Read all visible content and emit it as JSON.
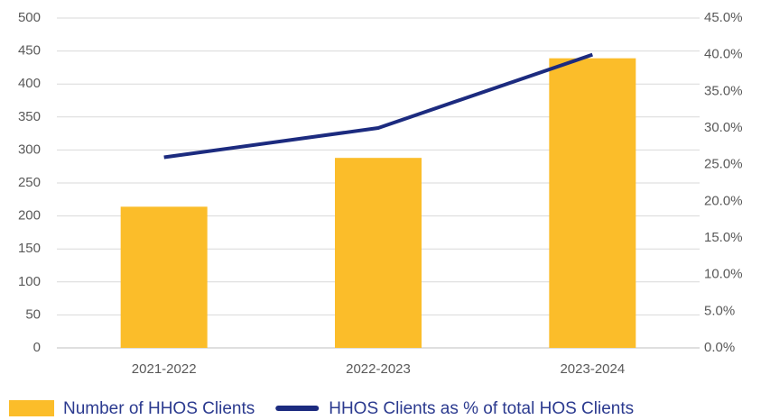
{
  "chart_data": {
    "type": "bar",
    "categories": [
      "2021-2022",
      "2022-2023",
      "2023-2024"
    ],
    "series": [
      {
        "name": "Number of HHOS Clients",
        "color": "#fbbd2a",
        "type": "bar",
        "values": [
          214,
          288,
          439
        ]
      },
      {
        "name": "HHOS Clients as % of total HOS Clients",
        "color": "#1c2b7f",
        "type": "line",
        "axis": "y2",
        "values": [
          26,
          30,
          40
        ]
      }
    ],
    "ylim": [
      0,
      500
    ],
    "yticks": [
      0,
      50,
      100,
      150,
      200,
      250,
      300,
      350,
      400,
      450,
      500
    ],
    "y2lim": [
      0,
      45
    ],
    "y2ticks": [
      {
        "value": 0,
        "label": "0.0%"
      },
      {
        "value": 5,
        "label": "5.0%"
      },
      {
        "value": 10,
        "label": "10.0%"
      },
      {
        "value": 15,
        "label": "15.0%"
      },
      {
        "value": 20,
        "label": "20.0%"
      },
      {
        "value": 25,
        "label": "25.0%"
      },
      {
        "value": 30,
        "label": "30.0%"
      },
      {
        "value": 35,
        "label": "35.0%"
      },
      {
        "value": 40,
        "label": "40.0%"
      },
      {
        "value": 45,
        "label": "45.0%"
      }
    ],
    "grid": true,
    "legend": "bottom"
  }
}
